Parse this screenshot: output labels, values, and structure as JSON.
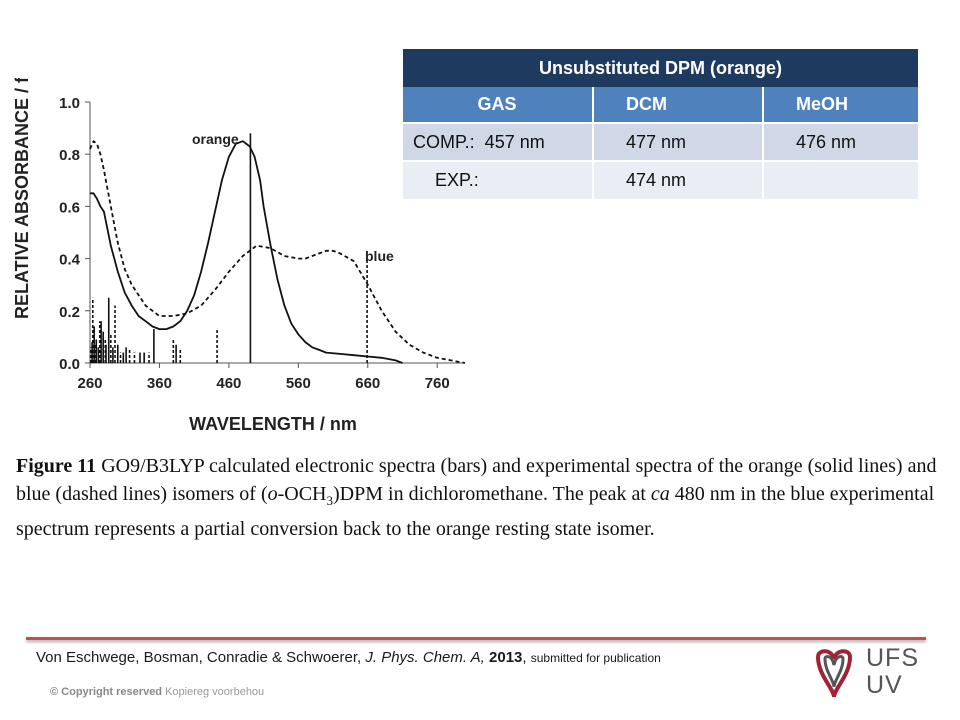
{
  "chart_data": {
    "type": "line",
    "xlabel": "WAVELENGTH / nm",
    "ylabel": "RELATIVE ABSORBANCE / f",
    "xlim": [
      260,
      800
    ],
    "ylim": [
      0,
      1.0
    ],
    "x_ticks": [
      "260",
      "360",
      "460",
      "560",
      "660",
      "760"
    ],
    "y_ticks": [
      "0.0",
      "0.2",
      "0.4",
      "0.6",
      "0.8",
      "1.0"
    ],
    "annotations": [
      "orange",
      "blue"
    ],
    "series": [
      {
        "name": "orange",
        "style": "solid",
        "x": [
          260,
          265,
          270,
          275,
          280,
          290,
          300,
          310,
          320,
          330,
          340,
          350,
          360,
          370,
          380,
          390,
          400,
          410,
          420,
          430,
          440,
          450,
          460,
          470,
          480,
          490,
          497,
          505,
          510,
          520,
          530,
          540,
          550,
          560,
          570,
          580,
          590,
          600,
          620,
          640,
          660,
          680,
          700,
          710
        ],
        "y": [
          0.65,
          0.65,
          0.63,
          0.6,
          0.58,
          0.45,
          0.35,
          0.27,
          0.22,
          0.18,
          0.16,
          0.14,
          0.13,
          0.13,
          0.14,
          0.16,
          0.2,
          0.26,
          0.35,
          0.46,
          0.58,
          0.7,
          0.79,
          0.84,
          0.85,
          0.83,
          0.79,
          0.7,
          0.6,
          0.45,
          0.32,
          0.22,
          0.15,
          0.11,
          0.08,
          0.06,
          0.05,
          0.04,
          0.035,
          0.03,
          0.025,
          0.02,
          0.01,
          0.0
        ]
      },
      {
        "name": "blue",
        "style": "dashed",
        "x": [
          260,
          265,
          270,
          275,
          280,
          290,
          300,
          310,
          320,
          330,
          340,
          360,
          380,
          400,
          420,
          440,
          460,
          480,
          500,
          520,
          540,
          560,
          570,
          580,
          590,
          600,
          610,
          620,
          640,
          660,
          680,
          700,
          720,
          740,
          760,
          780,
          800
        ],
        "y": [
          0.82,
          0.85,
          0.84,
          0.8,
          0.74,
          0.6,
          0.46,
          0.36,
          0.3,
          0.26,
          0.22,
          0.18,
          0.18,
          0.19,
          0.22,
          0.28,
          0.35,
          0.41,
          0.45,
          0.44,
          0.41,
          0.4,
          0.4,
          0.41,
          0.42,
          0.43,
          0.43,
          0.42,
          0.39,
          0.3,
          0.2,
          0.12,
          0.07,
          0.04,
          0.02,
          0.01,
          0.0
        ]
      }
    ],
    "bars_solid": [
      {
        "x": 263,
        "y": 0.08
      },
      {
        "x": 266,
        "y": 0.14
      },
      {
        "x": 269,
        "y": 0.09
      },
      {
        "x": 272,
        "y": 0.06
      },
      {
        "x": 276,
        "y": 0.16
      },
      {
        "x": 279,
        "y": 0.12
      },
      {
        "x": 283,
        "y": 0.07
      },
      {
        "x": 287,
        "y": 0.25
      },
      {
        "x": 293,
        "y": 0.06
      },
      {
        "x": 300,
        "y": 0.07
      },
      {
        "x": 308,
        "y": 0.04
      },
      {
        "x": 312,
        "y": 0.06
      },
      {
        "x": 332,
        "y": 0.04
      },
      {
        "x": 338,
        "y": 0.04
      },
      {
        "x": 352,
        "y": 0.13
      },
      {
        "x": 384,
        "y": 0.07
      },
      {
        "x": 491,
        "y": 0.88
      }
    ],
    "bars_dashed": [
      {
        "x": 261,
        "y": 0.06
      },
      {
        "x": 264,
        "y": 0.25
      },
      {
        "x": 268,
        "y": 0.07
      },
      {
        "x": 274,
        "y": 0.16
      },
      {
        "x": 282,
        "y": 0.09
      },
      {
        "x": 290,
        "y": 0.11
      },
      {
        "x": 296,
        "y": 0.22
      },
      {
        "x": 304,
        "y": 0.04
      },
      {
        "x": 317,
        "y": 0.05
      },
      {
        "x": 324,
        "y": 0.04
      },
      {
        "x": 345,
        "y": 0.04
      },
      {
        "x": 380,
        "y": 0.09
      },
      {
        "x": 390,
        "y": 0.05
      },
      {
        "x": 443,
        "y": 0.13
      },
      {
        "x": 659,
        "y": 0.4
      }
    ]
  },
  "table": {
    "title": "Unsubstituted DPM (orange)",
    "headers": [
      "GAS",
      "DCM",
      "MeOH"
    ],
    "rows": [
      [
        "COMP.:  457 nm",
        "477 nm",
        "476 nm"
      ],
      [
        "EXP.:",
        "474 nm",
        ""
      ]
    ]
  },
  "caption": {
    "figure_label": "Figure 11",
    "text_1": "GO9/B3LYP calculated electronic spectra (bars) and experimental spectra of the orange (solid lines) and blue (dashed lines) isomers of (",
    "o_italic": "o",
    "text_och": "-OCH",
    "sub_3": "3",
    "text_2": ")DPM in dichloromethane.  The peak at ",
    "ca_italic": "ca",
    "text_3": " 480 nm in the blue experimental spectrum represents a partial conversion back to the orange resting state isomer."
  },
  "footer": {
    "authors": "Von Eschwege, Bosman, Conradie & Schwoerer,",
    "journal": "J. Phys. Chem. A,",
    "year": "2013",
    "status": "submitted for publication",
    "copyright_bold": "© Copyright reserved",
    "copyright_rest": "Kopiereg voorbehou",
    "logo_line1": "UFS",
    "logo_line2": "UV"
  },
  "colors": {
    "table_title_bg": "#1f3a5f",
    "table_header_bg": "#4f81bd",
    "table_row1_bg": "#d0d8e8",
    "table_row2_bg": "#e9edf4",
    "footer_line": "#c0504d",
    "logo_red": "#a32035",
    "logo_gray": "#555555"
  }
}
